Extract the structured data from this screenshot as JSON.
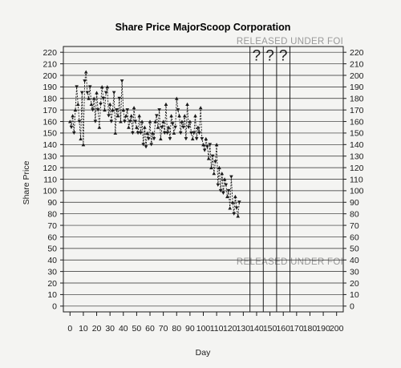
{
  "chart_data": {
    "type": "line",
    "title": "Share Price MajorScoop Corporation",
    "xlabel": "Day",
    "ylabel": "Share Price",
    "xlim": [
      -5,
      205
    ],
    "ylim": [
      -5,
      225
    ],
    "xticks": [
      0,
      10,
      20,
      30,
      40,
      50,
      60,
      70,
      80,
      90,
      100,
      110,
      120,
      130,
      140,
      150,
      160,
      170,
      180,
      190,
      200
    ],
    "yticks": [
      0,
      10,
      20,
      30,
      40,
      50,
      60,
      70,
      80,
      90,
      100,
      110,
      120,
      130,
      140,
      150,
      160,
      170,
      180,
      190,
      200,
      210,
      220
    ],
    "grid": "horizontal",
    "vertical_markers": [
      135,
      145,
      155,
      165
    ],
    "unknown_labels": [
      "?",
      "?",
      "?"
    ],
    "annotations": [
      "RELEASED UNDER FOI",
      "RELEASED UNDER FOI"
    ],
    "series": [
      {
        "x": [
          0,
          1,
          2,
          3,
          4,
          5,
          6,
          7,
          8,
          9,
          10,
          11,
          12,
          13,
          14,
          15,
          16,
          17,
          18,
          19,
          20,
          21,
          22,
          23,
          24,
          25,
          26,
          27,
          28,
          29,
          30,
          31,
          32,
          33,
          34,
          35,
          36,
          37,
          38,
          39,
          40,
          41,
          42,
          43,
          44,
          45,
          46,
          47,
          48,
          49,
          50,
          51,
          52,
          53,
          54,
          55,
          56,
          57,
          58,
          59,
          60,
          61,
          62,
          63,
          64,
          65,
          66,
          67,
          68,
          69,
          70,
          71,
          72,
          73,
          74,
          75,
          76,
          77,
          78,
          79,
          80,
          81,
          82,
          83,
          84,
          85,
          86,
          87,
          88,
          89,
          90,
          91,
          92,
          93,
          94,
          95,
          96,
          97,
          98,
          99,
          100,
          101,
          102,
          103,
          104,
          105,
          106,
          107,
          108,
          109,
          110,
          111,
          112,
          113,
          114,
          115,
          116,
          117,
          118,
          119,
          120,
          121,
          122,
          123,
          124,
          125,
          126,
          127
        ],
        "values": [
          160,
          155,
          165,
          150,
          170,
          190,
          175,
          160,
          145,
          185,
          140,
          195,
          203,
          185,
          180,
          190,
          175,
          170,
          180,
          160,
          185,
          170,
          155,
          175,
          190,
          180,
          170,
          185,
          190,
          165,
          175,
          160,
          170,
          185,
          150,
          170,
          165,
          180,
          160,
          195,
          170,
          160,
          165,
          170,
          155,
          160,
          165,
          150,
          172,
          160,
          155,
          150,
          165,
          150,
          160,
          140,
          155,
          138,
          150,
          145,
          160,
          140,
          150,
          145,
          160,
          165,
          155,
          170,
          145,
          155,
          160,
          150,
          175,
          150,
          155,
          145,
          165,
          158,
          150,
          155,
          180,
          170,
          165,
          150,
          160,
          155,
          165,
          145,
          175,
          155,
          160,
          150,
          145,
          150,
          165,
          145,
          155,
          150,
          172,
          145,
          140,
          135,
          145,
          138,
          128,
          140,
          120,
          130,
          115,
          125,
          140,
          105,
          120,
          100,
          115,
          98,
          110,
          105,
          95,
          100,
          85,
          112,
          90,
          80,
          95,
          85,
          78,
          90
        ]
      }
    ]
  }
}
